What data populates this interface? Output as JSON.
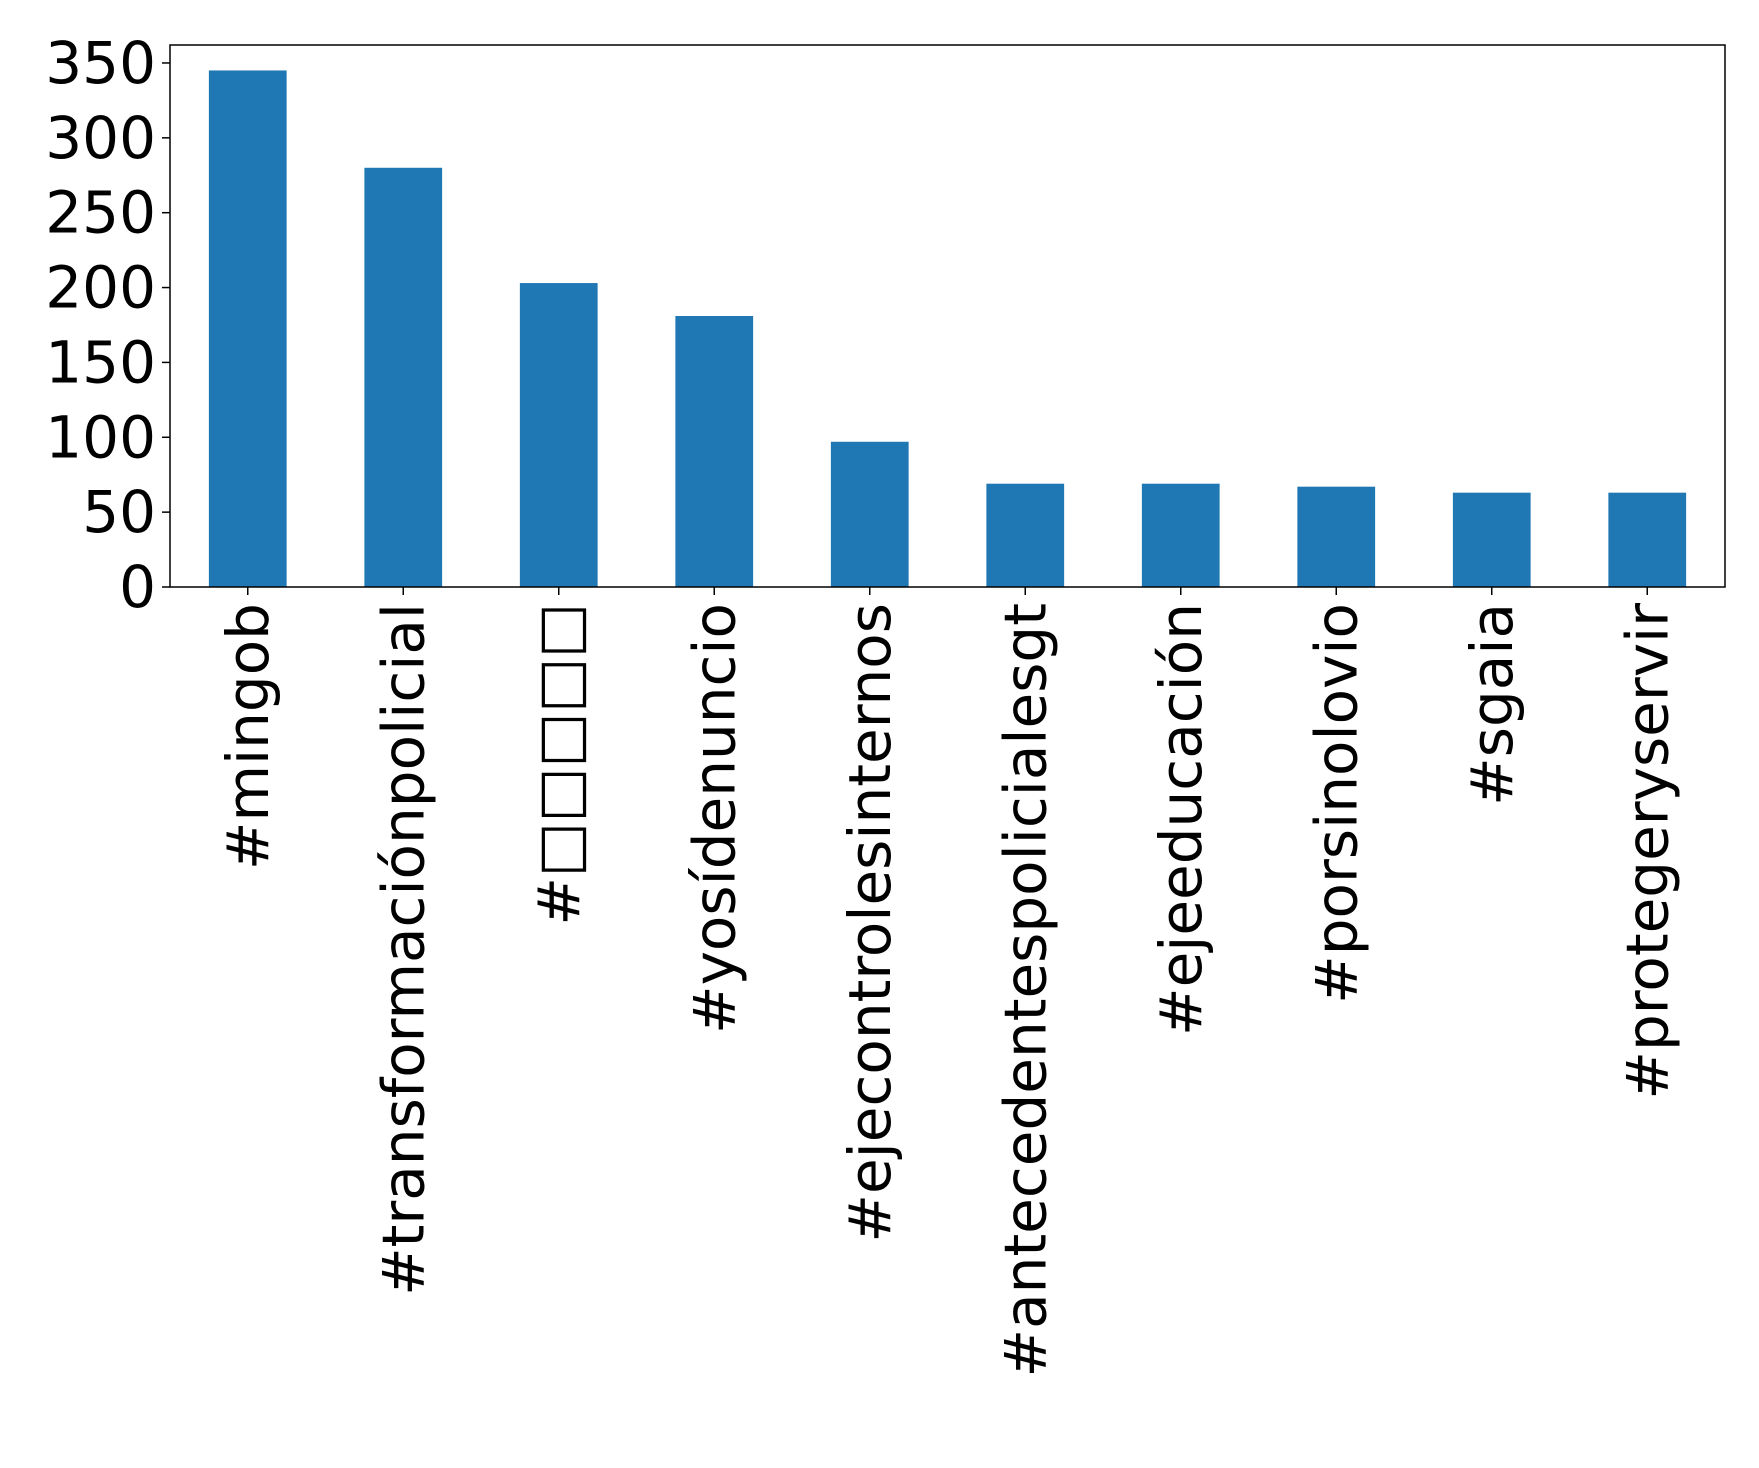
{
  "chart_data": {
    "type": "bar",
    "categories": [
      "#mingob",
      "#transformaciónpolicial",
      "#□□□□□",
      "#yosídenuncio",
      "#ejecontrolesinternos",
      "#antecedentespolicialesgt",
      "#ejeeducación",
      "#porsinolovio",
      "#sgaia",
      "#protegeryservir"
    ],
    "values": [
      345,
      280,
      203,
      181,
      97,
      69,
      69,
      67,
      63,
      63
    ],
    "ylim": [
      0,
      362
    ],
    "yticks": [
      0,
      50,
      100,
      150,
      200,
      250,
      300,
      350
    ],
    "title": "",
    "xlabel": "",
    "ylabel": "",
    "bar_color": "#1f77b4",
    "grid": false,
    "legend": "none"
  }
}
